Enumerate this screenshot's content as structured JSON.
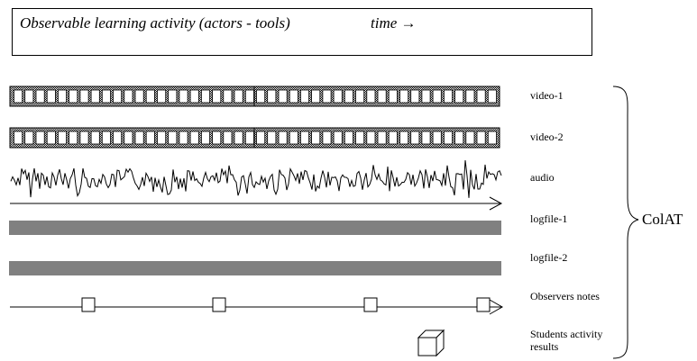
{
  "header": {
    "title": "Observable learning activity (actors -  tools)",
    "time_label": "time →"
  },
  "tracks": [
    {
      "id": "video-1",
      "label": "video-1"
    },
    {
      "id": "video-2",
      "label": "video-2"
    },
    {
      "id": "audio",
      "label": "audio"
    },
    {
      "id": "logfile-1",
      "label": "logfile-1"
    },
    {
      "id": "logfile-2",
      "label": "logfile-2"
    },
    {
      "id": "observers-notes",
      "label": "Observers notes"
    },
    {
      "id": "students-activity",
      "label": "Students activity results"
    }
  ],
  "group_label": "ColAT"
}
